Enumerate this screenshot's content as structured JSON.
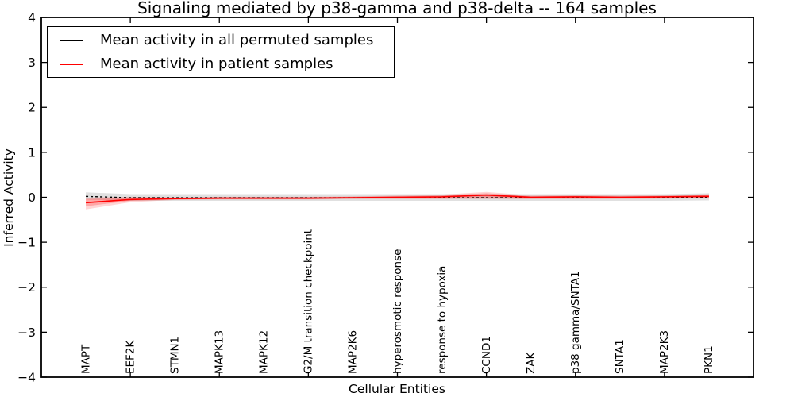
{
  "title": "Signaling mediated by p38-gamma and p38-delta -- 164 samples",
  "legend": {
    "items": [
      {
        "label": "Mean activity in all permuted samples",
        "color": "#000000"
      },
      {
        "label": "Mean activity in patient samples",
        "color": "#ff0000"
      }
    ]
  },
  "chart_data": {
    "type": "line",
    "title": "Signaling mediated by p38-gamma and p38-delta -- 164 samples",
    "xlabel": "Cellular Entities",
    "ylabel": "Inferred Activity",
    "ylim": [
      -4,
      4
    ],
    "grid": false,
    "legend_position": "upper left",
    "yticklabels": [
      "4",
      "3",
      "2",
      "1",
      "0",
      "−1",
      "−2",
      "−3",
      "−4"
    ],
    "categories": [
      "MAPT",
      "EEF2K",
      "STMN1",
      "MAPK13",
      "MAPK12",
      "G2/M transition checkpoint",
      "MAP2K6",
      "hyperosmotic response",
      "response to hypoxia",
      "CCND1",
      "ZAK",
      "p38 gamma/SNTA1",
      "SNTA1",
      "MAP2K3",
      "PKN1"
    ],
    "series": [
      {
        "name": "Mean activity in all permuted samples",
        "color": "#000000",
        "line_style": "dashed",
        "values": [
          0.02,
          -0.01,
          -0.01,
          -0.01,
          -0.01,
          -0.01,
          -0.01,
          -0.01,
          -0.01,
          -0.01,
          -0.01,
          -0.01,
          -0.01,
          -0.01,
          0.0
        ],
        "band_color": "#999999",
        "band_upper": [
          0.11,
          0.07,
          0.07,
          0.07,
          0.07,
          0.07,
          0.07,
          0.07,
          0.07,
          0.07,
          0.07,
          0.07,
          0.07,
          0.07,
          0.09
        ],
        "band_lower": [
          -0.05,
          -0.08,
          -0.08,
          -0.08,
          -0.08,
          -0.08,
          -0.08,
          -0.08,
          -0.08,
          -0.08,
          -0.08,
          -0.08,
          -0.08,
          -0.08,
          -0.07
        ]
      },
      {
        "name": "Mean activity in patient samples",
        "color": "#ff0000",
        "line_style": "solid",
        "values": [
          -0.12,
          -0.05,
          -0.03,
          -0.02,
          -0.02,
          -0.02,
          -0.01,
          0.0,
          0.01,
          0.05,
          0.0,
          0.01,
          0.0,
          0.01,
          0.02
        ],
        "band_color": "#ff0000",
        "band_upper": [
          -0.01,
          0.01,
          0.0,
          0.01,
          0.01,
          0.01,
          0.02,
          0.04,
          0.06,
          0.12,
          0.04,
          0.05,
          0.04,
          0.05,
          0.07
        ],
        "band_lower": [
          -0.27,
          -0.11,
          -0.06,
          -0.05,
          -0.05,
          -0.05,
          -0.04,
          -0.04,
          -0.04,
          -0.04,
          -0.04,
          -0.04,
          -0.04,
          -0.03,
          -0.02
        ],
        "band_inner_upper": [
          -0.04,
          -0.01,
          -0.01,
          0.0,
          0.0,
          0.0,
          0.01,
          0.02,
          0.04,
          0.09,
          0.02,
          0.03,
          0.02,
          0.03,
          0.05
        ],
        "band_inner_lower": [
          -0.2,
          -0.08,
          -0.05,
          -0.04,
          -0.04,
          -0.04,
          -0.03,
          -0.02,
          -0.02,
          -0.02,
          -0.03,
          -0.02,
          -0.02,
          -0.02,
          -0.01
        ]
      }
    ]
  }
}
